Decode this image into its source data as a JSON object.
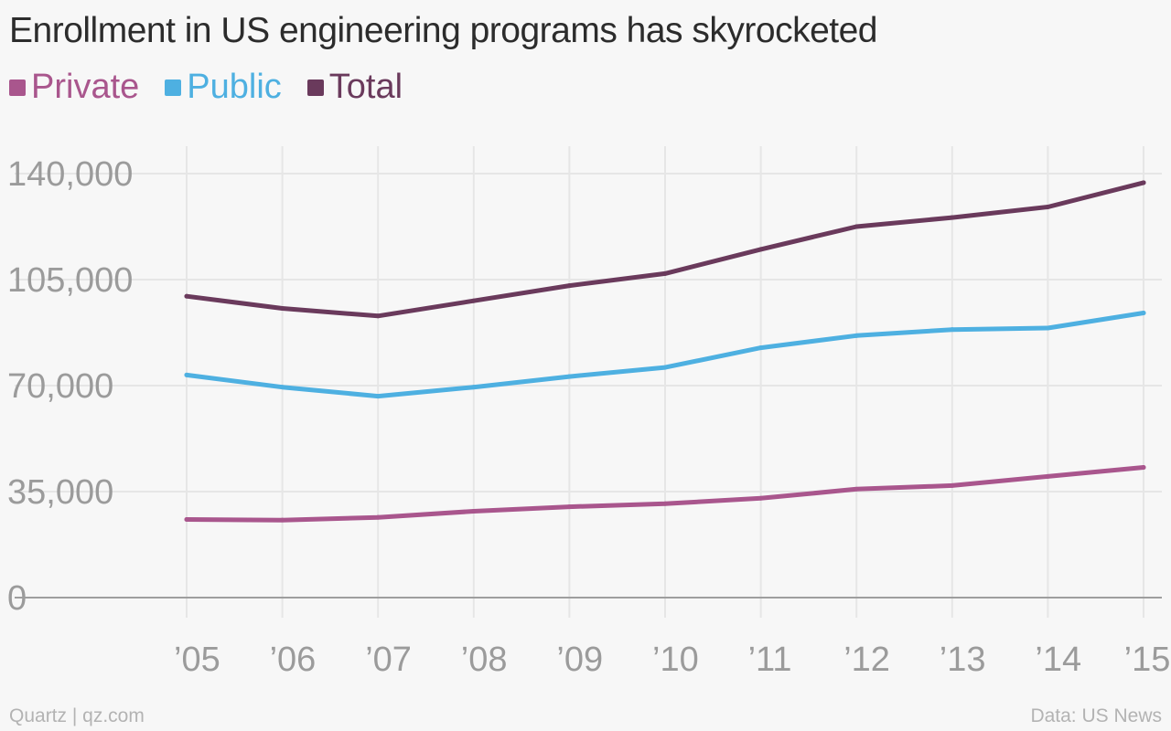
{
  "header": {
    "title": "Enrollment in US engineering programs has skyrocketed"
  },
  "legend": [
    {
      "label": "Private",
      "color": "#a9568d"
    },
    {
      "label": "Public",
      "color": "#4eb0e1"
    },
    {
      "label": "Total",
      "color": "#6a3a5c"
    }
  ],
  "footer": {
    "credit": "Quartz | qz.com",
    "source": "Data: US News"
  },
  "chart_data": {
    "type": "line",
    "x": [
      "’05",
      "’06",
      "’07",
      "’08",
      "’09",
      "’10",
      "’11",
      "’12",
      "’13",
      "’14",
      "’15"
    ],
    "ylim": [
      0,
      140000
    ],
    "yticks": [
      0,
      35000,
      70000,
      105000,
      140000
    ],
    "ytick_labels": [
      "0",
      "35,000",
      "70,000",
      "105,000",
      "140,000"
    ],
    "grid": true,
    "legend_position": "top-left",
    "series": [
      {
        "name": "Private",
        "color": "#a9568d",
        "values": [
          25800,
          25600,
          26500,
          28500,
          30000,
          31000,
          32800,
          35800,
          37000,
          40000,
          43000
        ]
      },
      {
        "name": "Public",
        "color": "#4eb0e1",
        "values": [
          73500,
          69500,
          66500,
          69500,
          73000,
          76000,
          82500,
          86500,
          88500,
          89000,
          94000
        ]
      },
      {
        "name": "Total",
        "color": "#6a3a5c",
        "values": [
          99500,
          95500,
          93000,
          98000,
          103000,
          107000,
          115000,
          122500,
          125500,
          129000,
          137000
        ]
      }
    ]
  }
}
